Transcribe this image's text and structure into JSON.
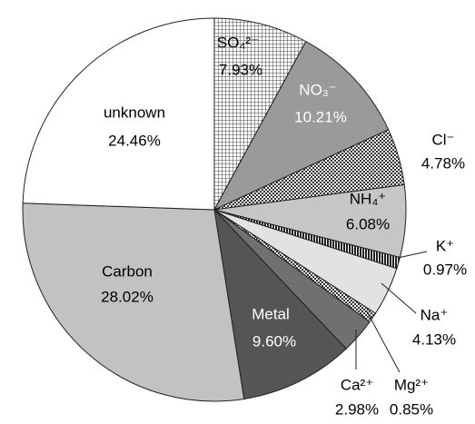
{
  "chart_data": {
    "type": "pie",
    "categories": [
      "SO₄²⁻",
      "NO₃⁻",
      "Cl⁻",
      "NH₄⁺",
      "K⁺",
      "Na⁺",
      "Mg²⁺",
      "Ca²⁺",
      "Metal",
      "Carbon",
      "unknown"
    ],
    "values": [
      7.93,
      10.21,
      4.78,
      6.08,
      0.97,
      4.13,
      0.85,
      2.98,
      9.6,
      28.02,
      24.46
    ],
    "value_labels": [
      "7.93%",
      "10.21%",
      "4.78%",
      "6.08%",
      "0.97%",
      "4.13%",
      "0.85%",
      "2.98%",
      "9.60%",
      "28.02%",
      "24.46%"
    ],
    "colors": [
      "#e8e8e8",
      "#9a9a9a",
      "#5a5a5a",
      "#c6c6c6",
      "#3a3a3a",
      "#e2e2e2",
      "#808080",
      "#707070",
      "#555555",
      "#c2c2c2",
      "#ffffff"
    ],
    "patterns": [
      "grid",
      null,
      "checker",
      null,
      "stripes",
      null,
      "checker",
      null,
      null,
      null,
      null
    ]
  }
}
